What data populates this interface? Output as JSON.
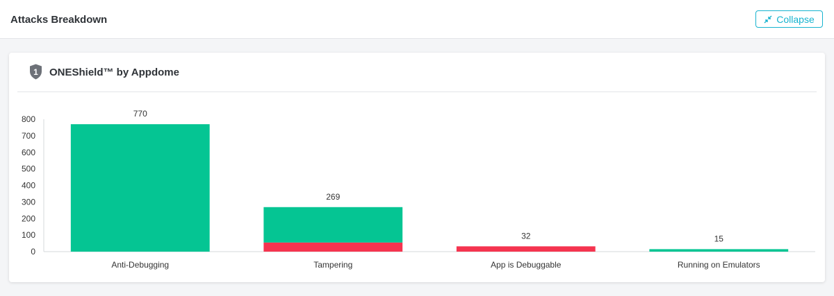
{
  "page": {
    "title": "Attacks Breakdown",
    "collapse_label": "Collapse",
    "collapse_icon": "collapse-arrows-icon"
  },
  "card": {
    "title": "ONEShield™ by Appdome",
    "badge_number": "1",
    "badge_icon": "shield-icon"
  },
  "colors": {
    "green": "#05c593",
    "red": "#f5344f",
    "accent": "#16b3cf"
  },
  "chart_data": {
    "type": "bar",
    "stacked": true,
    "categories": [
      "Anti-Debugging",
      "Tampering",
      "App is Debuggable",
      "Running on Emulators"
    ],
    "series": [
      {
        "color": "#f5344f",
        "values": [
          0,
          55,
          32,
          0
        ]
      },
      {
        "color": "#05c593",
        "values": [
          770,
          214,
          0,
          15
        ]
      }
    ],
    "totals": [
      770,
      269,
      32,
      15
    ],
    "ylim": [
      0,
      800
    ],
    "yticks": [
      0,
      100,
      200,
      300,
      400,
      500,
      600,
      700,
      800
    ],
    "grid": false,
    "legend": "none"
  }
}
